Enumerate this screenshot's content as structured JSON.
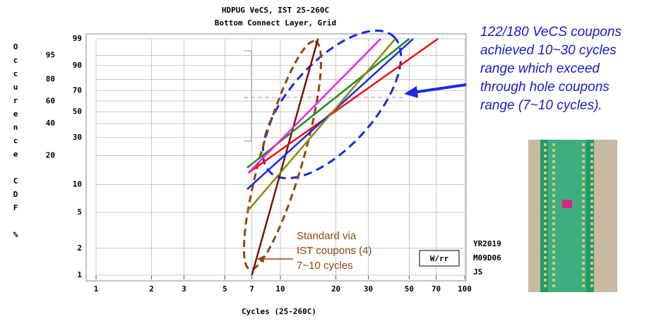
{
  "chart_data": {
    "type": "weibull",
    "title": "HDPUG VeCS, IST 25-260C",
    "subtitle": "Bottom Connect Layer, Grid",
    "x_label": "Cycles (25-260C)",
    "y_label": "Occurence CDF %",
    "xlim": [
      1,
      100
    ],
    "ylim": [
      1,
      99
    ],
    "xticks": [
      1,
      2,
      3,
      5,
      7,
      10,
      20,
      30,
      50,
      70,
      100
    ],
    "yticks": [
      1,
      2,
      5,
      10,
      30,
      50,
      70,
      90,
      99
    ],
    "y_outer_ticks": [
      20,
      40,
      60,
      80,
      95
    ],
    "grid": true,
    "log_x": true,
    "series": [
      {
        "name": "dark red",
        "color": "#7a1010",
        "x": [
          7,
          16
        ],
        "values": [
          1,
          99
        ]
      },
      {
        "name": "red",
        "color": "#ee1111",
        "x": [
          6.7,
          71.5
        ],
        "values": [
          13.3,
          99
        ]
      },
      {
        "name": "blue",
        "color": "#1a2bdd",
        "x": [
          6.6,
          52.5
        ],
        "values": [
          8.9,
          99
        ]
      },
      {
        "name": "green",
        "color": "#1d8a1d",
        "x": [
          6.6,
          50
        ],
        "values": [
          15,
          99
        ]
      },
      {
        "name": "olive",
        "color": "#8a8a10",
        "x": [
          6.6,
          42
        ],
        "values": [
          5.1,
          99
        ]
      },
      {
        "name": "magenta",
        "color": "#ee22ee",
        "x": [
          6.7,
          35
        ],
        "values": [
          13.3,
          99
        ]
      }
    ],
    "annotation": [
      "122/180 VeCS coupons",
      "achieved 10~30 cycles",
      "range which exceed",
      "through hole coupons",
      "range (7~10 cycles)."
    ],
    "standard_note": [
      "Standard via",
      "IST coupons (4)",
      "7~10 cycles"
    ],
    "method": "W/rr",
    "stamp": [
      "YR2019",
      "M09D06",
      "JS"
    ]
  }
}
